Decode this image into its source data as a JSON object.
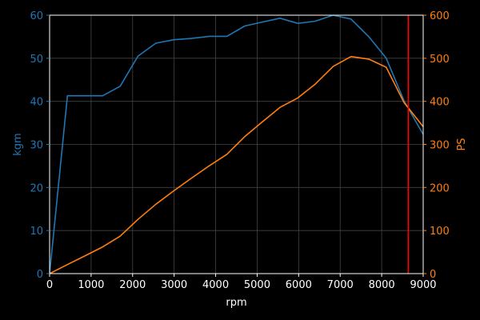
{
  "chart_data": {
    "type": "line",
    "xlabel": "rpm",
    "ylabel_left": "kgm",
    "ylabel_right": "PS",
    "xlim": [
      0,
      9000
    ],
    "ylim_left": [
      0,
      60
    ],
    "ylim_right": [
      0,
      600
    ],
    "x_ticks": [
      0,
      1000,
      2000,
      3000,
      4000,
      5000,
      6000,
      7000,
      8000,
      9000
    ],
    "y_left_ticks": [
      0,
      10,
      20,
      30,
      40,
      50,
      60
    ],
    "y_right_ticks": [
      0,
      100,
      200,
      300,
      400,
      500,
      600
    ],
    "grid": true,
    "background": "#000000",
    "foreground": "#ffffff",
    "grid_color": "#444444",
    "series": [
      {
        "axis": "left",
        "color": "#1f77b4",
        "x": [
          0,
          430,
          1280,
          1700,
          2130,
          2560,
          2990,
          3410,
          3840,
          4270,
          4700,
          5120,
          5550,
          5980,
          6400,
          6830,
          7260,
          7690,
          8110,
          8540,
          9000
        ],
        "y": [
          0,
          41.3,
          41.3,
          43.5,
          50.5,
          53.5,
          54.3,
          54.6,
          55.1,
          55.1,
          57.5,
          58.4,
          59.3,
          58.1,
          58.6,
          60.0,
          59.1,
          55.0,
          50.0,
          40.1,
          32.3
        ]
      },
      {
        "axis": "right",
        "color": "#ff7f0e",
        "x": [
          0,
          430,
          850,
          1280,
          1700,
          2130,
          2560,
          2990,
          3410,
          3840,
          4270,
          4700,
          5120,
          5550,
          5980,
          6400,
          6830,
          7260,
          7690,
          8110,
          8540,
          9000
        ],
        "y": [
          0,
          21,
          41,
          62,
          87,
          126,
          161,
          192,
          221,
          250,
          277,
          318,
          352,
          386,
          408,
          440,
          481,
          504,
          498,
          479,
          397,
          341
        ]
      }
    ],
    "vline": {
      "x": 8640,
      "color": "#ff0000"
    }
  }
}
